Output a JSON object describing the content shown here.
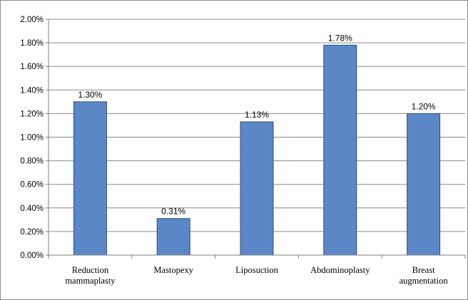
{
  "chart_data": {
    "type": "bar",
    "title": "",
    "xlabel": "",
    "ylabel": "",
    "categories": [
      [
        "Reduction",
        "mammaplasty"
      ],
      [
        "Mastopexy"
      ],
      [
        "Liposuction"
      ],
      [
        "Abdominoplasty"
      ],
      [
        "Breast",
        "augmentation"
      ]
    ],
    "values": [
      1.3,
      0.31,
      1.13,
      1.78,
      1.2
    ],
    "data_labels": [
      "1.30%",
      "0.31%",
      "1.13%",
      "1.78%",
      "1.20%"
    ],
    "y_ticks": [
      "0.00%",
      "0.20%",
      "0.40%",
      "0.60%",
      "0.80%",
      "1.00%",
      "1.20%",
      "1.40%",
      "1.60%",
      "1.80%",
      "2.00%"
    ],
    "ylim": [
      0,
      2.0
    ],
    "grid": true,
    "legend": "none",
    "colors": {
      "bar_fill": "#5b87c6",
      "bar_stroke": "#2f4f7a",
      "grid": "#8c8c8c",
      "axis": "#808080"
    }
  }
}
